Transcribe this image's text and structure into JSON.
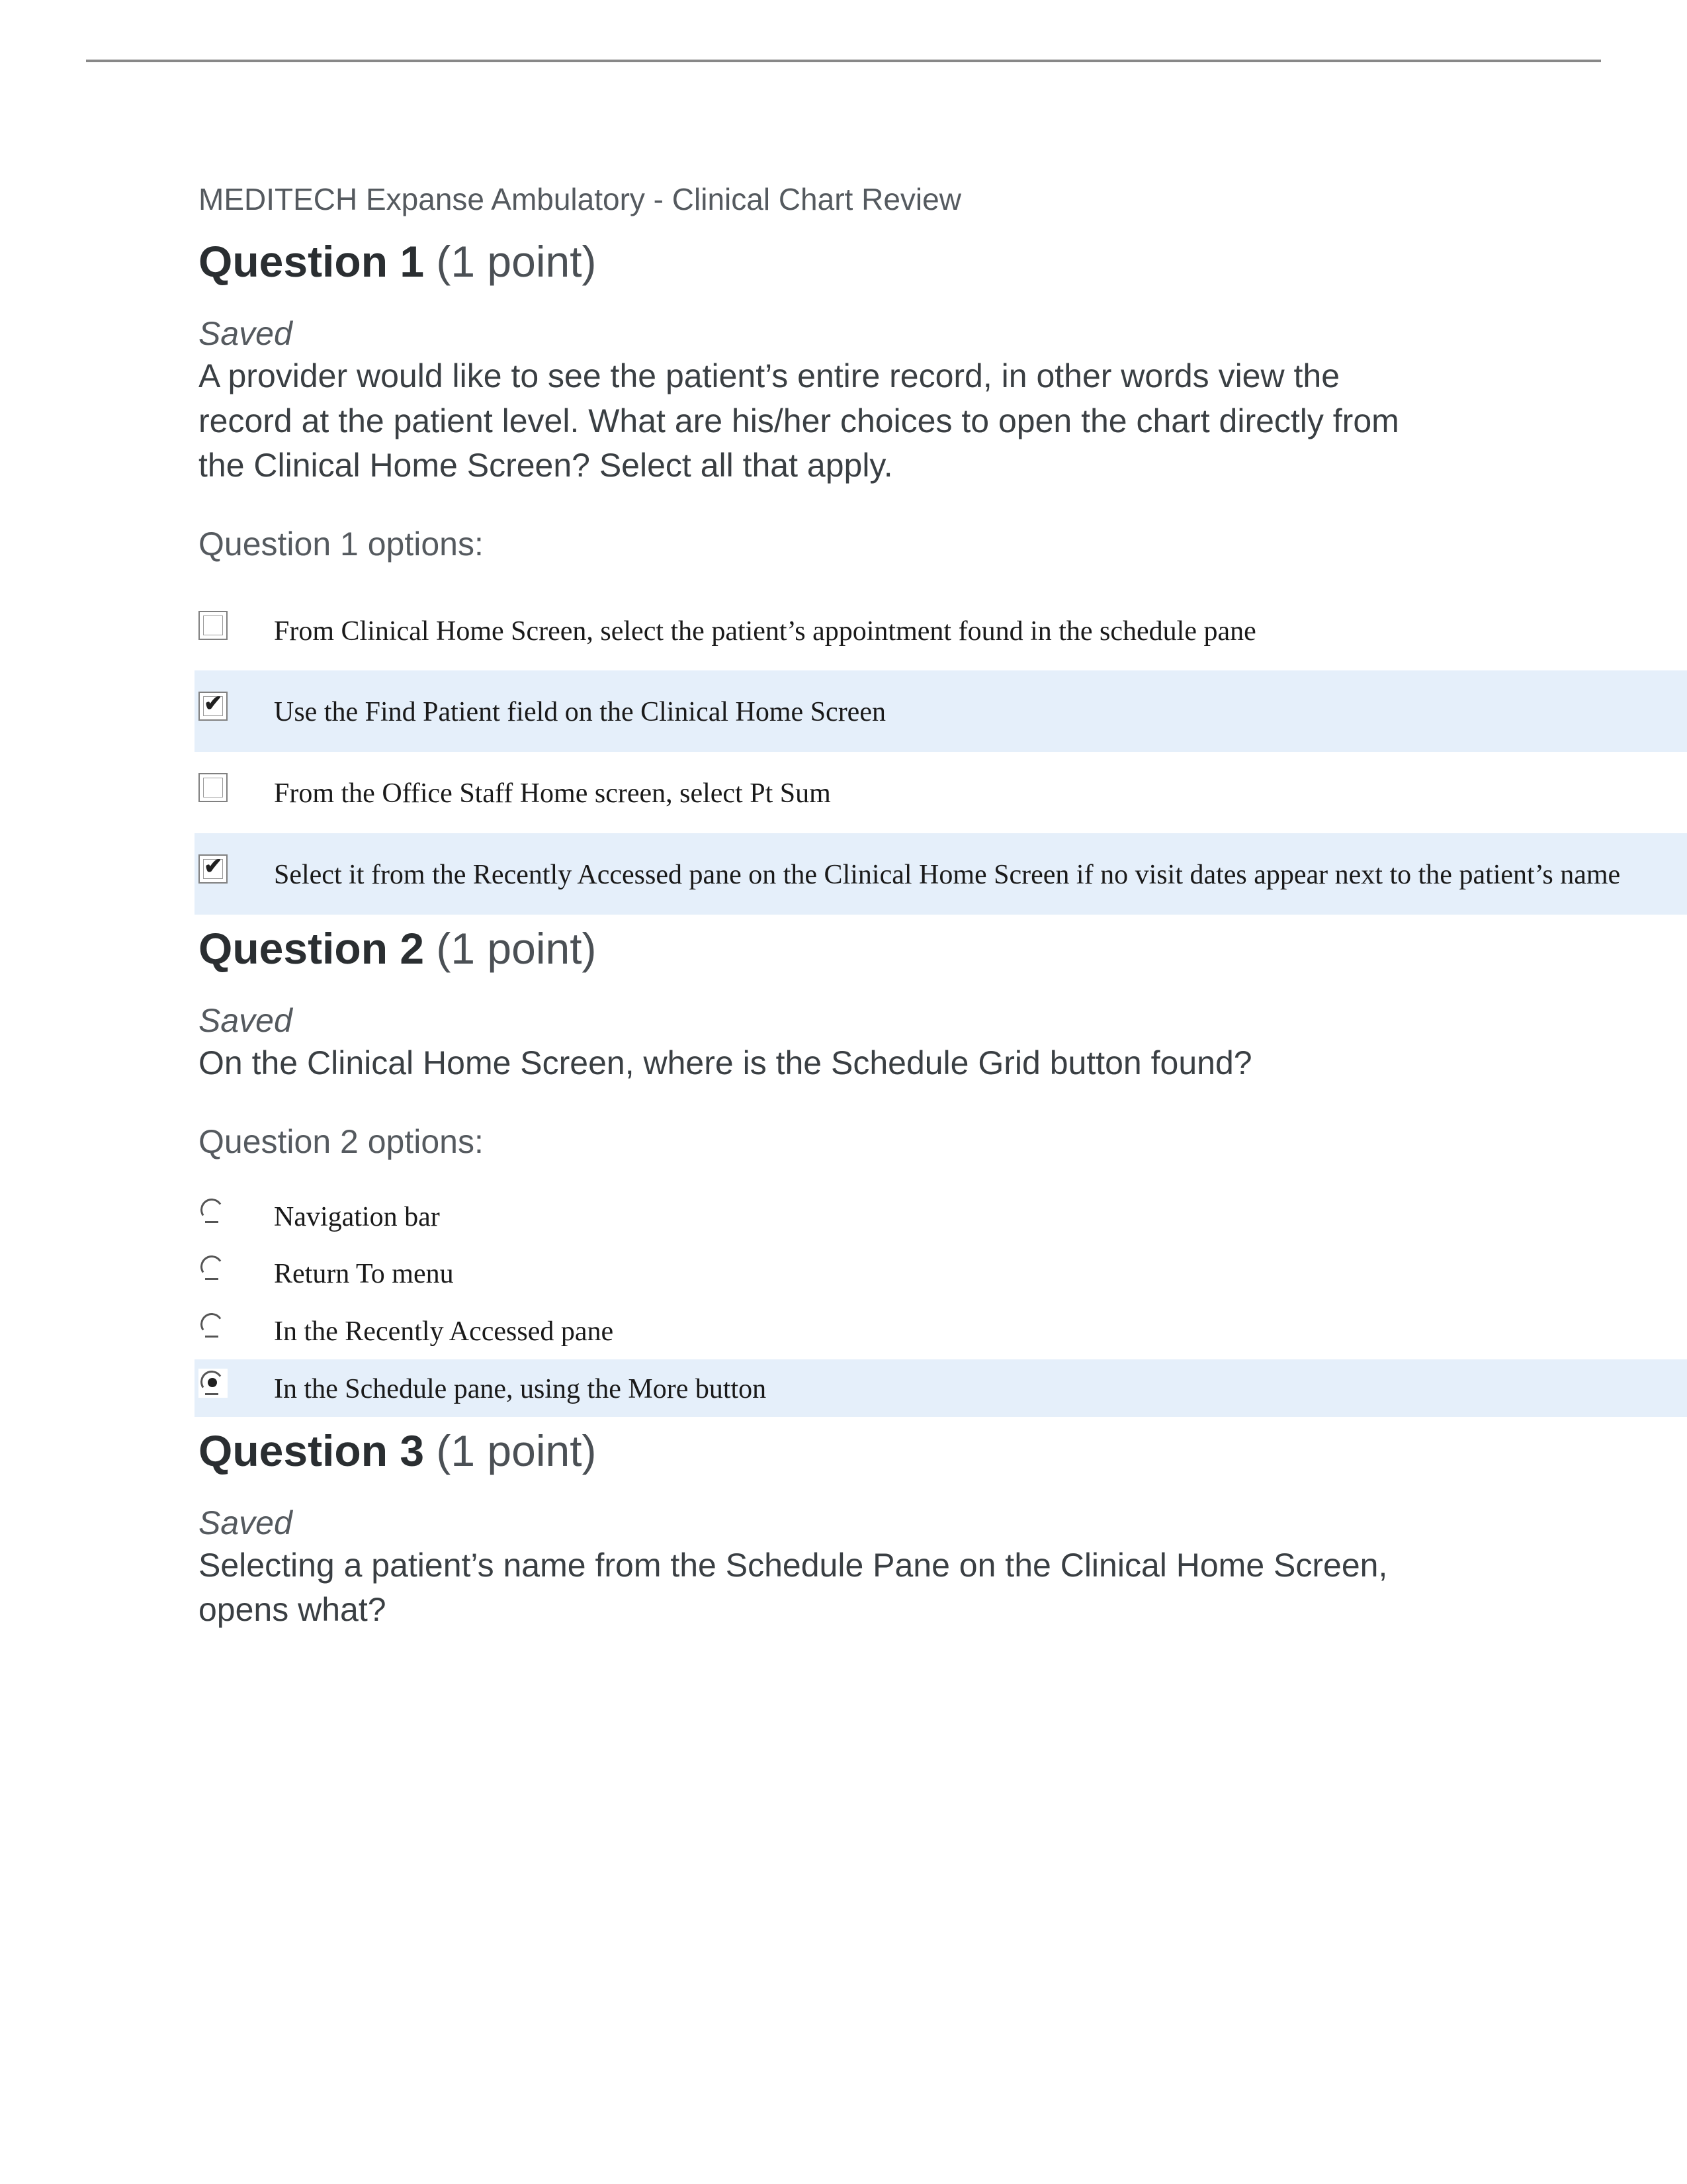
{
  "colors": {
    "rule": "#888888",
    "heading": "#2a2e31",
    "subheading": "#4b5055",
    "body": "#3a3f43",
    "muted": "#555a5f",
    "option_text": "#1a1a1a",
    "highlight_bg": "#e5effa",
    "page_bg": "#ffffff"
  },
  "typography": {
    "ui_font": "Segoe UI / Helvetica Neue / Arial",
    "option_font": "Georgia / Times New Roman (serif)",
    "breadcrumb_size_pt": 17,
    "heading_size_pt": 25,
    "body_size_pt": 19,
    "option_size_pt": 16
  },
  "breadcrumb": "MEDITECH Expanse Ambulatory - Clinical Chart Review",
  "q1": {
    "heading_bold": "Question 1",
    "heading_pts": " (1 point)",
    "saved": "Saved",
    "prompt": "A provider would like to see the patient’s entire record, in other words view the record at the patient level. What are his/her choices to open the chart directly from the Clinical Home Screen? Select all that apply.",
    "opts_label": "Question 1 options:",
    "type": "checkbox",
    "options": [
      {
        "text": "From Clinical Home Screen, select the patient’s appointment found in the schedule pane",
        "checked": false
      },
      {
        "text": "Use the Find Patient field on the Clinical Home Screen",
        "checked": true
      },
      {
        "text": "From the Office Staff Home screen, select Pt Sum",
        "checked": false
      },
      {
        "text": "Select it from the Recently Accessed pane on the Clinical Home Screen if no visit dates appear next to the patient’s name",
        "checked": true
      }
    ]
  },
  "q2": {
    "heading_bold": "Question 2",
    "heading_pts": " (1 point)",
    "saved": "Saved",
    "prompt": "On the Clinical Home Screen, where is the Schedule Grid button found?",
    "opts_label": "Question 2 options:",
    "type": "radio",
    "options": [
      {
        "text": "Navigation bar",
        "selected": false
      },
      {
        "text": "Return To menu",
        "selected": false
      },
      {
        "text": "In the Recently Accessed pane",
        "selected": false
      },
      {
        "text": "In the Schedule pane, using the More button",
        "selected": true
      }
    ]
  },
  "q3": {
    "heading_bold": "Question 3",
    "heading_pts": " (1 point)",
    "saved": "Saved",
    "prompt": "Selecting a patient’s name from the Schedule Pane on the Clinical Home Screen, opens what?"
  }
}
